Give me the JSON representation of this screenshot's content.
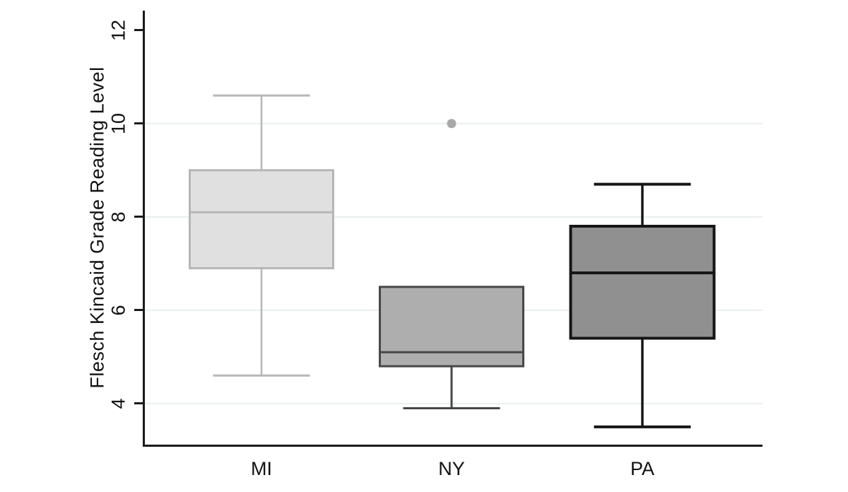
{
  "figure": {
    "background": "#ffffff",
    "axis_color": "#1a1a1a",
    "text_color": "#111111",
    "grid_color": "#e8efed"
  },
  "chart_data": {
    "type": "box",
    "title": "",
    "xlabel": "",
    "ylabel": "Flesch Kincaid Grade Reading Level",
    "categories": [
      "MI",
      "NY",
      "PA"
    ],
    "ylim": [
      3.12,
      12.42
    ],
    "yticks": [
      12,
      10,
      8,
      6,
      4
    ],
    "gridlines_at": [
      10,
      8,
      6,
      4
    ],
    "grid": true,
    "legend": "none",
    "outlier_color": "#a8a8a8",
    "series": [
      {
        "name": "MI",
        "whisker_low": 4.6,
        "q1": 6.9,
        "median": 8.1,
        "q3": 9.0,
        "whisker_high": 10.6,
        "outliers": [],
        "fill": "#e0e0e0",
        "stroke": "#b6b6b6"
      },
      {
        "name": "NY",
        "whisker_low": 3.9,
        "q1": 4.8,
        "median": 5.1,
        "q3": 6.5,
        "whisker_high": null,
        "outliers": [
          10.0
        ],
        "fill": "#aeaeae",
        "stroke": "#474747"
      },
      {
        "name": "PA",
        "whisker_low": 3.5,
        "q1": 5.4,
        "median": 6.8,
        "q3": 7.8,
        "whisker_high": 8.7,
        "outliers": [],
        "fill": "#909090",
        "stroke": "#161616"
      }
    ]
  }
}
